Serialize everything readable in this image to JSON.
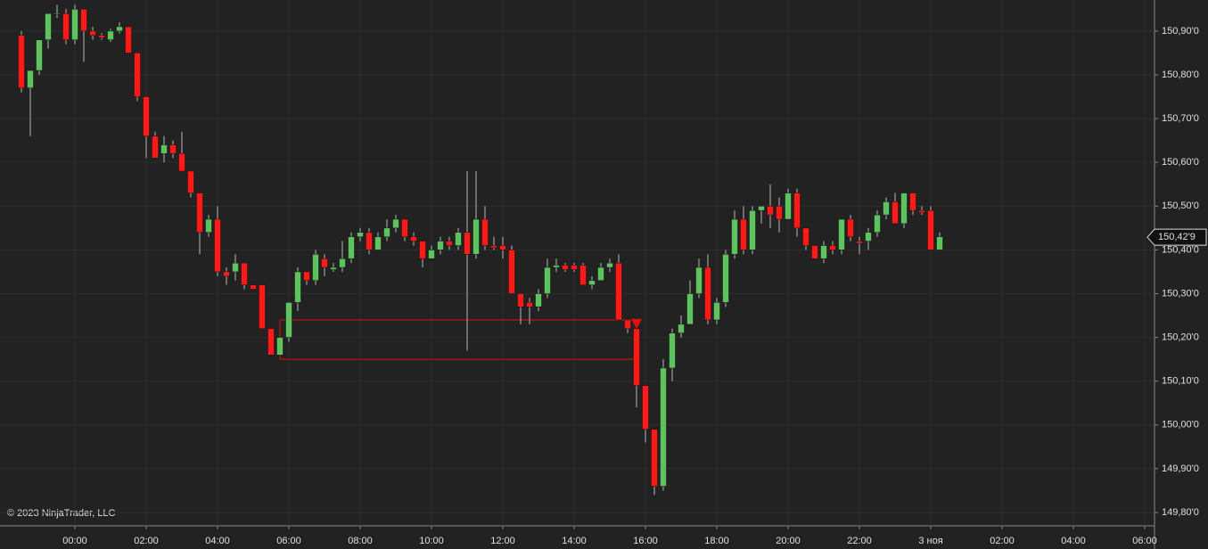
{
  "chart_data": {
    "type": "candlestick",
    "copyright": "© 2023 NinjaTrader, LLC",
    "up_color": "#5ec35e",
    "down_color": "#ff1a1a",
    "wick_color": "#b8b8b8",
    "zone_color": "#e01010",
    "grid": true,
    "x": [
      -1.5,
      -1.25,
      -1,
      -0.75,
      -0.5,
      -0.25,
      0,
      0.25,
      0.5,
      0.75,
      1,
      1.25,
      1.5,
      1.75,
      2,
      2.25,
      2.5,
      2.75,
      3,
      3.25,
      3.5,
      3.75,
      4,
      4.25,
      4.5,
      4.75,
      5,
      5.25,
      5.5,
      5.75,
      6,
      6.25,
      6.5,
      6.75,
      7,
      7.25,
      7.5,
      7.75,
      8,
      8.25,
      8.5,
      8.75,
      9,
      9.25,
      9.5,
      9.75,
      10,
      10.25,
      10.5,
      10.75,
      11,
      11.25,
      11.5,
      11.75,
      12,
      12.25,
      12.5,
      12.75,
      13,
      13.25,
      13.5,
      13.75,
      14,
      14.25,
      14.5,
      14.75,
      15,
      15.25,
      15.5,
      15.75,
      16,
      16.25,
      16.5,
      16.75,
      17,
      17.25,
      17.5,
      17.75,
      18,
      18.25,
      18.5,
      18.75,
      19,
      19.25,
      19.5,
      19.75,
      20,
      20.25,
      20.5,
      20.75,
      21,
      21.25,
      21.5,
      21.75,
      22,
      22.25,
      22.5,
      22.75,
      23,
      23.25,
      23.5,
      23.75,
      24,
      24.25
    ],
    "open": [
      150.89,
      150.77,
      150.81,
      150.88,
      150.94,
      150.94,
      150.88,
      150.95,
      150.9,
      150.89,
      150.88,
      150.9,
      150.91,
      150.85,
      150.75,
      150.66,
      150.62,
      150.64,
      150.62,
      150.58,
      150.53,
      150.44,
      150.47,
      150.35,
      150.35,
      150.37,
      150.32,
      150.32,
      150.22,
      150.16,
      150.2,
      150.28,
      150.35,
      150.33,
      150.38,
      150.355,
      150.36,
      150.38,
      150.43,
      150.44,
      150.4,
      150.43,
      150.45,
      150.47,
      150.43,
      150.42,
      150.38,
      150.4,
      150.42,
      150.41,
      150.44,
      150.39,
      150.47,
      150.41,
      150.41,
      150.4,
      150.3,
      150.28,
      150.27,
      150.3,
      150.36,
      150.365,
      150.365,
      150.365,
      150.32,
      150.33,
      150.36,
      150.37,
      150.24,
      150.22,
      150.09,
      149.99,
      149.86,
      150.13,
      150.21,
      150.23,
      150.3,
      150.36,
      150.24,
      150.28,
      150.39,
      150.47,
      150.4,
      150.49,
      150.5,
      150.5,
      150.47,
      150.53,
      150.45,
      150.41,
      150.38,
      150.41,
      150.4,
      150.47,
      150.42,
      150.42,
      150.44,
      150.48,
      150.51,
      150.46,
      150.53,
      150.49,
      150.49,
      150.4
    ],
    "high": [
      150.9,
      150.81,
      150.88,
      150.94,
      150.96,
      150.95,
      150.96,
      150.95,
      150.91,
      150.895,
      150.905,
      150.92,
      150.91,
      150.85,
      150.75,
      150.67,
      150.66,
      150.65,
      150.67,
      150.58,
      150.53,
      150.48,
      150.5,
      150.36,
      150.39,
      150.37,
      150.32,
      150.32,
      150.22,
      150.2,
      150.28,
      150.36,
      150.35,
      150.4,
      150.39,
      150.37,
      150.42,
      150.44,
      150.45,
      150.45,
      150.44,
      150.47,
      150.48,
      150.47,
      150.44,
      150.42,
      150.41,
      150.43,
      150.43,
      150.45,
      150.58,
      150.58,
      150.5,
      150.43,
      150.43,
      150.41,
      150.3,
      150.29,
      150.31,
      150.38,
      150.38,
      150.37,
      150.37,
      150.37,
      150.34,
      150.37,
      150.38,
      150.39,
      150.24,
      150.22,
      150.09,
      149.99,
      150.15,
      150.22,
      150.25,
      150.33,
      150.38,
      150.39,
      150.29,
      150.4,
      150.49,
      150.5,
      150.5,
      150.5,
      150.55,
      150.52,
      150.54,
      150.54,
      150.45,
      150.41,
      150.42,
      150.42,
      150.47,
      150.48,
      150.43,
      150.45,
      150.49,
      150.52,
      150.53,
      150.53,
      150.53,
      150.5,
      150.5,
      150.44
    ],
    "low": [
      150.76,
      150.66,
      150.8,
      150.86,
      150.93,
      150.87,
      150.87,
      150.83,
      150.88,
      150.88,
      150.875,
      150.895,
      150.85,
      150.74,
      150.61,
      150.61,
      150.6,
      150.61,
      150.58,
      150.52,
      150.39,
      150.43,
      150.34,
      150.32,
      150.33,
      150.31,
      150.31,
      150.22,
      150.16,
      150.16,
      150.19,
      150.26,
      150.32,
      150.32,
      150.34,
      150.35,
      150.35,
      150.37,
      150.42,
      150.39,
      150.4,
      150.42,
      150.44,
      150.42,
      150.41,
      150.36,
      150.38,
      150.39,
      150.4,
      150.4,
      150.17,
      150.38,
      150.4,
      150.4,
      150.38,
      150.3,
      150.23,
      150.23,
      150.26,
      150.29,
      150.35,
      150.35,
      150.35,
      150.32,
      150.31,
      150.33,
      150.35,
      150.24,
      150.21,
      150.04,
      149.96,
      149.84,
      149.85,
      150.1,
      150.2,
      150.23,
      150.29,
      150.23,
      150.23,
      150.27,
      150.38,
      150.39,
      150.39,
      150.46,
      150.45,
      150.44,
      150.47,
      150.43,
      150.4,
      150.38,
      150.37,
      150.39,
      150.39,
      150.42,
      150.39,
      150.4,
      150.43,
      150.47,
      150.46,
      150.45,
      150.48,
      150.48,
      150.4,
      150.4
    ],
    "close": [
      150.77,
      150.81,
      150.88,
      150.94,
      150.94,
      150.88,
      150.95,
      150.9,
      150.89,
      150.885,
      150.9,
      150.91,
      150.85,
      150.75,
      150.66,
      150.61,
      150.64,
      150.62,
      150.58,
      150.53,
      150.44,
      150.47,
      150.35,
      150.34,
      150.37,
      150.32,
      150.31,
      150.22,
      150.16,
      150.2,
      150.28,
      150.35,
      150.33,
      150.39,
      150.36,
      150.36,
      150.38,
      150.43,
      150.44,
      150.4,
      150.43,
      150.45,
      150.47,
      150.43,
      150.42,
      150.38,
      150.4,
      150.42,
      150.41,
      150.44,
      150.39,
      150.47,
      150.41,
      150.405,
      150.4,
      150.3,
      150.27,
      150.27,
      150.3,
      150.36,
      150.365,
      150.355,
      150.355,
      150.32,
      150.33,
      150.36,
      150.37,
      150.24,
      150.22,
      150.09,
      149.99,
      149.86,
      150.13,
      150.21,
      150.23,
      150.3,
      150.36,
      150.24,
      150.28,
      150.39,
      150.47,
      150.4,
      150.49,
      150.5,
      150.48,
      150.47,
      150.53,
      150.45,
      150.41,
      150.38,
      150.41,
      150.4,
      150.47,
      150.43,
      150.415,
      150.44,
      150.48,
      150.51,
      150.46,
      150.53,
      150.49,
      150.485,
      150.4,
      150.43
    ],
    "zone": {
      "x": [
        5.75,
        15.75
      ],
      "y": [
        150.24,
        150.15
      ]
    },
    "signal": {
      "x": 15.75,
      "y": 150.23
    },
    "last_price": {
      "value": 150.429,
      "label": "150,42'9"
    },
    "xlim": [
      -2.1,
      30.275
    ],
    "ylim": [
      149.7695,
      150.971
    ],
    "xticks": [
      {
        "value": 0,
        "label": "00:00"
      },
      {
        "value": 2,
        "label": "02:00"
      },
      {
        "value": 4,
        "label": "04:00"
      },
      {
        "value": 6,
        "label": "06:00"
      },
      {
        "value": 8,
        "label": "08:00"
      },
      {
        "value": 10,
        "label": "10:00"
      },
      {
        "value": 12,
        "label": "12:00"
      },
      {
        "value": 14,
        "label": "14:00"
      },
      {
        "value": 16,
        "label": "16:00"
      },
      {
        "value": 18,
        "label": "18:00"
      },
      {
        "value": 20,
        "label": "20:00"
      },
      {
        "value": 22,
        "label": "22:00"
      },
      {
        "value": 24,
        "label": "3 ноя"
      },
      {
        "value": 26,
        "label": "02:00"
      },
      {
        "value": 28,
        "label": "04:00"
      },
      {
        "value": 30,
        "label": "06:00"
      }
    ],
    "yticks": [
      {
        "value": 149.8,
        "label": "149,80'0"
      },
      {
        "value": 149.9,
        "label": "149,90'0"
      },
      {
        "value": 150.0,
        "label": "150,00'0"
      },
      {
        "value": 150.1,
        "label": "150,10'0"
      },
      {
        "value": 150.2,
        "label": "150,20'0"
      },
      {
        "value": 150.3,
        "label": "150,30'0"
      },
      {
        "value": 150.4,
        "label": "150,40'0"
      },
      {
        "value": 150.5,
        "label": "150,50'0"
      },
      {
        "value": 150.6,
        "label": "150,60'0"
      },
      {
        "value": 150.7,
        "label": "150,70'0"
      },
      {
        "value": 150.8,
        "label": "150,80'0"
      },
      {
        "value": 150.9,
        "label": "150,90'0"
      }
    ]
  }
}
